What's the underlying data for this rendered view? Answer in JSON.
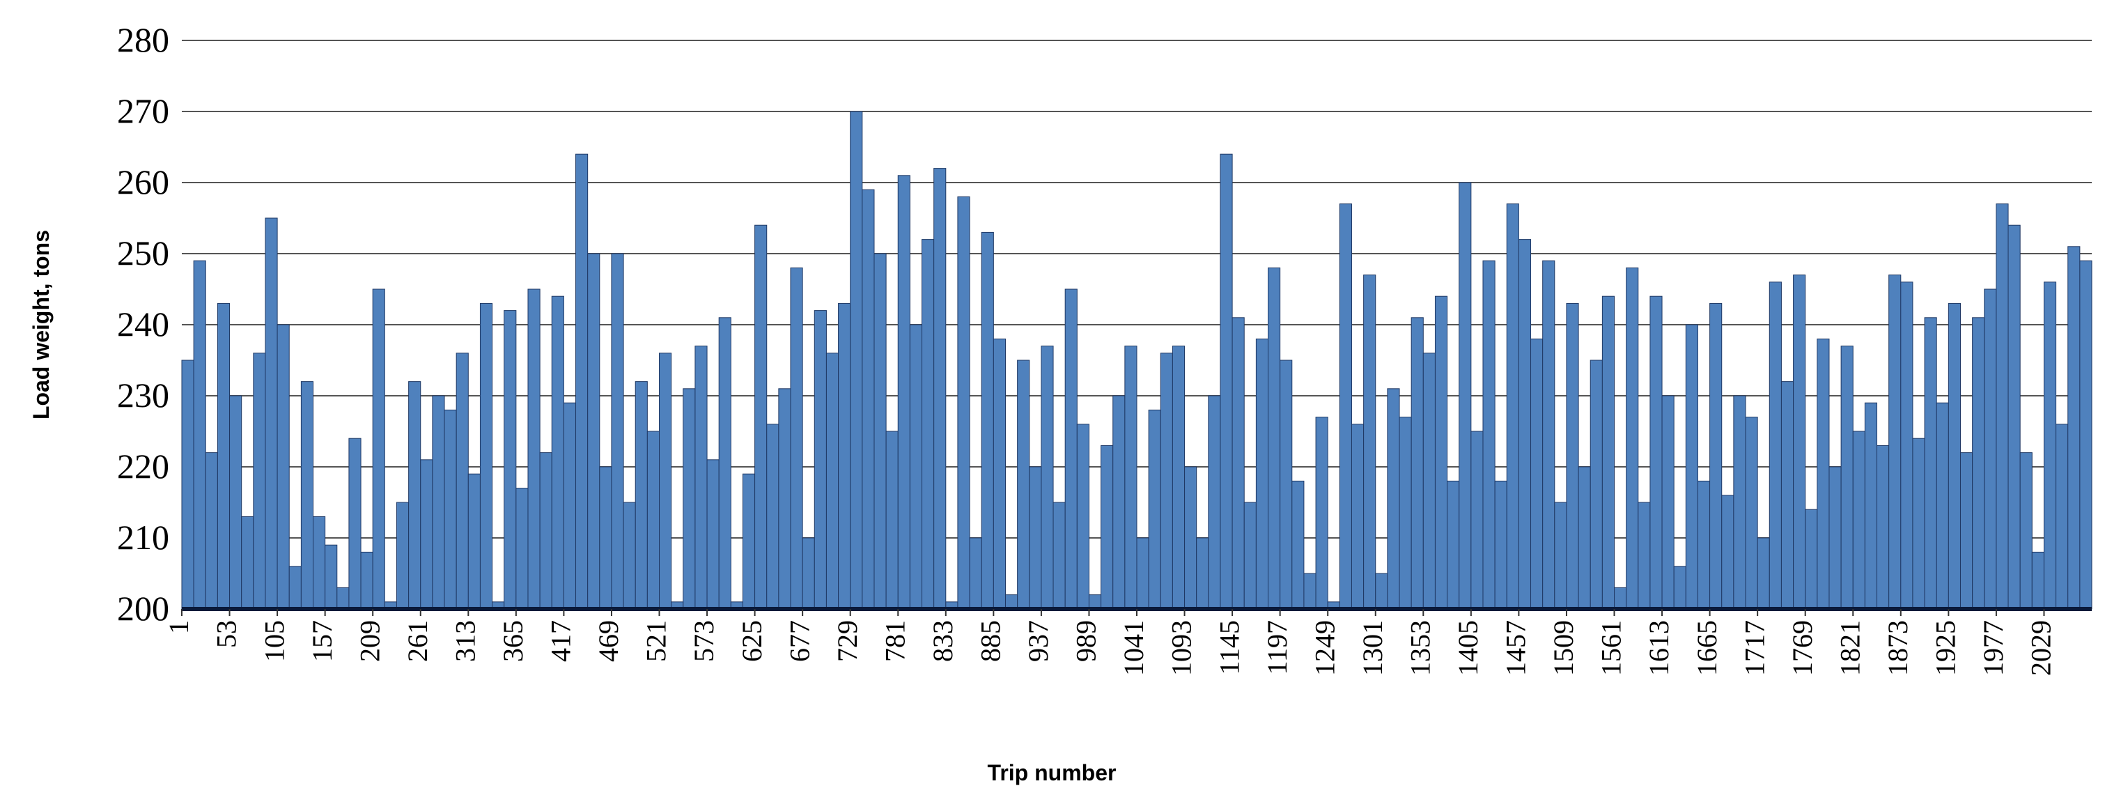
{
  "chart_data": {
    "type": "bar",
    "x_label": "Trip number",
    "y_label": "Load weight, tons",
    "color": "#4f81bd",
    "grid": true,
    "xlim": [
      1,
      2081
    ],
    "ylim": [
      200,
      280
    ],
    "yticks": [
      200,
      210,
      220,
      230,
      240,
      250,
      260,
      270,
      280
    ],
    "xticks": [
      1,
      53,
      105,
      157,
      209,
      261,
      313,
      365,
      417,
      469,
      521,
      573,
      625,
      677,
      729,
      781,
      833,
      885,
      937,
      989,
      1041,
      1093,
      1145,
      1197,
      1249,
      1301,
      1353,
      1405,
      1457,
      1509,
      1561,
      1613,
      1665,
      1717,
      1769,
      1821,
      1873,
      1925,
      1977,
      2029
    ],
    "x": [
      1,
      14,
      27,
      40,
      53,
      66,
      79,
      92,
      105,
      118,
      131,
      144,
      157,
      170,
      183,
      196,
      209,
      222,
      235,
      248,
      261,
      274,
      287,
      300,
      313,
      326,
      339,
      352,
      365,
      378,
      391,
      404,
      417,
      430,
      443,
      456,
      469,
      482,
      495,
      508,
      521,
      534,
      547,
      560,
      573,
      586,
      599,
      612,
      625,
      638,
      651,
      664,
      677,
      690,
      703,
      716,
      729,
      742,
      755,
      768,
      781,
      794,
      807,
      820,
      833,
      846,
      859,
      872,
      885,
      898,
      911,
      924,
      937,
      950,
      963,
      976,
      989,
      1002,
      1015,
      1028,
      1041,
      1054,
      1067,
      1080,
      1093,
      1106,
      1119,
      1132,
      1145,
      1158,
      1171,
      1184,
      1197,
      1210,
      1223,
      1236,
      1249,
      1262,
      1275,
      1288,
      1301,
      1314,
      1327,
      1340,
      1353,
      1366,
      1379,
      1392,
      1405,
      1418,
      1431,
      1444,
      1457,
      1470,
      1483,
      1496,
      1509,
      1522,
      1535,
      1548,
      1561,
      1574,
      1587,
      1600,
      1613,
      1626,
      1639,
      1652,
      1665,
      1678,
      1691,
      1704,
      1717,
      1730,
      1743,
      1756,
      1769,
      1782,
      1795,
      1808,
      1821,
      1834,
      1847,
      1860,
      1873,
      1886,
      1899,
      1912,
      1925,
      1938,
      1951,
      1964,
      1977,
      1990,
      2003,
      2016,
      2029,
      2042,
      2055,
      2068
    ],
    "values": [
      235,
      249,
      222,
      243,
      230,
      213,
      236,
      255,
      240,
      206,
      232,
      213,
      209,
      203,
      224,
      208,
      245,
      201,
      215,
      232,
      221,
      230,
      228,
      236,
      219,
      243,
      201,
      242,
      217,
      245,
      222,
      244,
      229,
      264,
      250,
      220,
      250,
      215,
      232,
      225,
      236,
      201,
      231,
      237,
      221,
      241,
      201,
      219,
      254,
      226,
      231,
      248,
      210,
      242,
      236,
      243,
      270,
      259,
      250,
      225,
      261,
      240,
      252,
      262,
      201,
      258,
      210,
      253,
      238,
      202,
      235,
      220,
      237,
      215,
      245,
      226,
      202,
      223,
      230,
      237,
      210,
      228,
      236,
      237,
      220,
      210,
      230,
      264,
      241,
      215,
      238,
      248,
      235,
      218,
      205,
      227,
      201,
      257,
      226,
      247,
      205,
      231,
      227,
      241,
      236,
      244,
      218,
      260,
      225,
      249,
      218,
      257,
      252,
      238,
      249,
      215,
      243,
      220,
      235,
      244,
      203,
      248,
      215,
      244,
      230,
      206,
      240,
      218,
      243,
      216,
      230,
      227,
      210,
      246,
      232,
      247,
      214,
      238,
      220,
      237,
      225,
      229,
      223,
      247,
      246,
      224,
      241,
      229,
      243,
      222,
      241,
      245,
      257,
      254,
      222,
      208,
      246,
      226,
      251,
      249
    ]
  }
}
